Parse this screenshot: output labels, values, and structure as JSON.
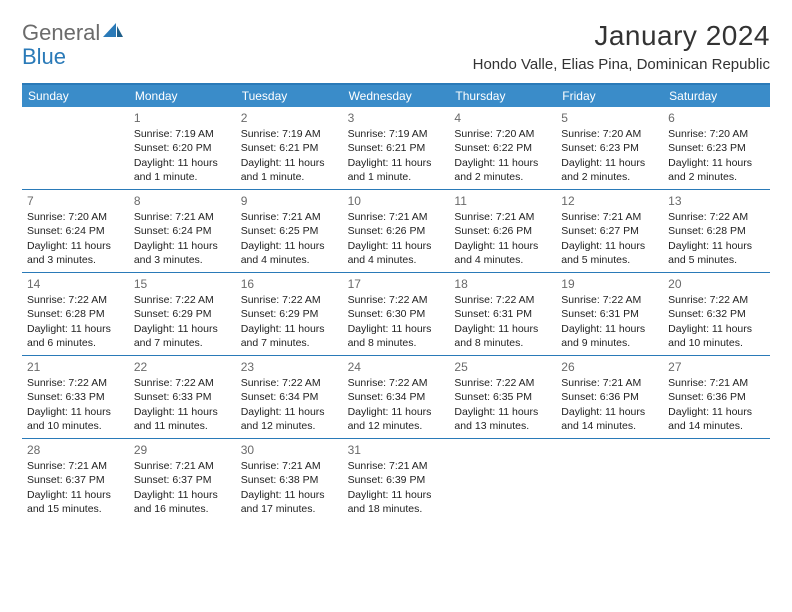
{
  "logo": {
    "word1": "General",
    "word2": "Blue"
  },
  "title": "January 2024",
  "location": "Hondo Valle, Elias Pina, Dominican Republic",
  "colors": {
    "accent": "#2a7ab8",
    "header_bg": "#3a8cc9",
    "header_text": "#ffffff",
    "daynum": "#6a6a6a",
    "text": "#222222"
  },
  "weekdays": [
    "Sunday",
    "Monday",
    "Tuesday",
    "Wednesday",
    "Thursday",
    "Friday",
    "Saturday"
  ],
  "weeks": [
    [
      {
        "num": "",
        "lines": []
      },
      {
        "num": "1",
        "lines": [
          "Sunrise: 7:19 AM",
          "Sunset: 6:20 PM",
          "Daylight: 11 hours",
          "and 1 minute."
        ]
      },
      {
        "num": "2",
        "lines": [
          "Sunrise: 7:19 AM",
          "Sunset: 6:21 PM",
          "Daylight: 11 hours",
          "and 1 minute."
        ]
      },
      {
        "num": "3",
        "lines": [
          "Sunrise: 7:19 AM",
          "Sunset: 6:21 PM",
          "Daylight: 11 hours",
          "and 1 minute."
        ]
      },
      {
        "num": "4",
        "lines": [
          "Sunrise: 7:20 AM",
          "Sunset: 6:22 PM",
          "Daylight: 11 hours",
          "and 2 minutes."
        ]
      },
      {
        "num": "5",
        "lines": [
          "Sunrise: 7:20 AM",
          "Sunset: 6:23 PM",
          "Daylight: 11 hours",
          "and 2 minutes."
        ]
      },
      {
        "num": "6",
        "lines": [
          "Sunrise: 7:20 AM",
          "Sunset: 6:23 PM",
          "Daylight: 11 hours",
          "and 2 minutes."
        ]
      }
    ],
    [
      {
        "num": "7",
        "lines": [
          "Sunrise: 7:20 AM",
          "Sunset: 6:24 PM",
          "Daylight: 11 hours",
          "and 3 minutes."
        ]
      },
      {
        "num": "8",
        "lines": [
          "Sunrise: 7:21 AM",
          "Sunset: 6:24 PM",
          "Daylight: 11 hours",
          "and 3 minutes."
        ]
      },
      {
        "num": "9",
        "lines": [
          "Sunrise: 7:21 AM",
          "Sunset: 6:25 PM",
          "Daylight: 11 hours",
          "and 4 minutes."
        ]
      },
      {
        "num": "10",
        "lines": [
          "Sunrise: 7:21 AM",
          "Sunset: 6:26 PM",
          "Daylight: 11 hours",
          "and 4 minutes."
        ]
      },
      {
        "num": "11",
        "lines": [
          "Sunrise: 7:21 AM",
          "Sunset: 6:26 PM",
          "Daylight: 11 hours",
          "and 4 minutes."
        ]
      },
      {
        "num": "12",
        "lines": [
          "Sunrise: 7:21 AM",
          "Sunset: 6:27 PM",
          "Daylight: 11 hours",
          "and 5 minutes."
        ]
      },
      {
        "num": "13",
        "lines": [
          "Sunrise: 7:22 AM",
          "Sunset: 6:28 PM",
          "Daylight: 11 hours",
          "and 5 minutes."
        ]
      }
    ],
    [
      {
        "num": "14",
        "lines": [
          "Sunrise: 7:22 AM",
          "Sunset: 6:28 PM",
          "Daylight: 11 hours",
          "and 6 minutes."
        ]
      },
      {
        "num": "15",
        "lines": [
          "Sunrise: 7:22 AM",
          "Sunset: 6:29 PM",
          "Daylight: 11 hours",
          "and 7 minutes."
        ]
      },
      {
        "num": "16",
        "lines": [
          "Sunrise: 7:22 AM",
          "Sunset: 6:29 PM",
          "Daylight: 11 hours",
          "and 7 minutes."
        ]
      },
      {
        "num": "17",
        "lines": [
          "Sunrise: 7:22 AM",
          "Sunset: 6:30 PM",
          "Daylight: 11 hours",
          "and 8 minutes."
        ]
      },
      {
        "num": "18",
        "lines": [
          "Sunrise: 7:22 AM",
          "Sunset: 6:31 PM",
          "Daylight: 11 hours",
          "and 8 minutes."
        ]
      },
      {
        "num": "19",
        "lines": [
          "Sunrise: 7:22 AM",
          "Sunset: 6:31 PM",
          "Daylight: 11 hours",
          "and 9 minutes."
        ]
      },
      {
        "num": "20",
        "lines": [
          "Sunrise: 7:22 AM",
          "Sunset: 6:32 PM",
          "Daylight: 11 hours",
          "and 10 minutes."
        ]
      }
    ],
    [
      {
        "num": "21",
        "lines": [
          "Sunrise: 7:22 AM",
          "Sunset: 6:33 PM",
          "Daylight: 11 hours",
          "and 10 minutes."
        ]
      },
      {
        "num": "22",
        "lines": [
          "Sunrise: 7:22 AM",
          "Sunset: 6:33 PM",
          "Daylight: 11 hours",
          "and 11 minutes."
        ]
      },
      {
        "num": "23",
        "lines": [
          "Sunrise: 7:22 AM",
          "Sunset: 6:34 PM",
          "Daylight: 11 hours",
          "and 12 minutes."
        ]
      },
      {
        "num": "24",
        "lines": [
          "Sunrise: 7:22 AM",
          "Sunset: 6:34 PM",
          "Daylight: 11 hours",
          "and 12 minutes."
        ]
      },
      {
        "num": "25",
        "lines": [
          "Sunrise: 7:22 AM",
          "Sunset: 6:35 PM",
          "Daylight: 11 hours",
          "and 13 minutes."
        ]
      },
      {
        "num": "26",
        "lines": [
          "Sunrise: 7:21 AM",
          "Sunset: 6:36 PM",
          "Daylight: 11 hours",
          "and 14 minutes."
        ]
      },
      {
        "num": "27",
        "lines": [
          "Sunrise: 7:21 AM",
          "Sunset: 6:36 PM",
          "Daylight: 11 hours",
          "and 14 minutes."
        ]
      }
    ],
    [
      {
        "num": "28",
        "lines": [
          "Sunrise: 7:21 AM",
          "Sunset: 6:37 PM",
          "Daylight: 11 hours",
          "and 15 minutes."
        ]
      },
      {
        "num": "29",
        "lines": [
          "Sunrise: 7:21 AM",
          "Sunset: 6:37 PM",
          "Daylight: 11 hours",
          "and 16 minutes."
        ]
      },
      {
        "num": "30",
        "lines": [
          "Sunrise: 7:21 AM",
          "Sunset: 6:38 PM",
          "Daylight: 11 hours",
          "and 17 minutes."
        ]
      },
      {
        "num": "31",
        "lines": [
          "Sunrise: 7:21 AM",
          "Sunset: 6:39 PM",
          "Daylight: 11 hours",
          "and 18 minutes."
        ]
      },
      {
        "num": "",
        "lines": []
      },
      {
        "num": "",
        "lines": []
      },
      {
        "num": "",
        "lines": []
      }
    ]
  ]
}
